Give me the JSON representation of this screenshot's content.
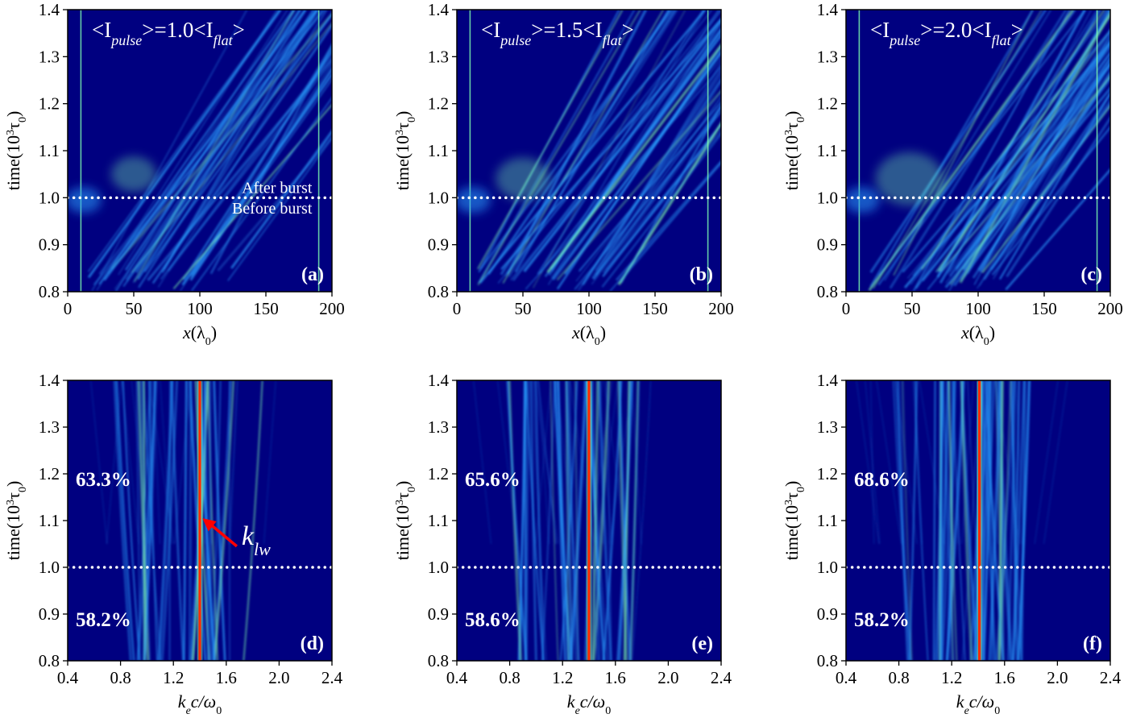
{
  "colors": {
    "background": "#000080",
    "streak": "#2aa0ff",
    "streak_bright": "#7fffb0",
    "hot_line": "#ff2a00",
    "text_on_plot": "#ffffff",
    "marker_line": "#ffffff",
    "arrow": "#ff0000"
  },
  "chart_data": [
    {
      "type": "heatmap",
      "panel": "(a)",
      "title": {
        "pre": "<I",
        "sub1": "pulse",
        "mid": ">=1.0<I",
        "sub2": "flat",
        "post": ">"
      },
      "xlabel": {
        "main": "x",
        "rest": "(λ",
        "sub": "0",
        "close": ")"
      },
      "ylabel": {
        "main": "time(10",
        "sup": "3",
        "tau": "τ",
        "sub": "0",
        "close": ")"
      },
      "xlim": [
        0,
        200
      ],
      "ylim": [
        0.8,
        1.4
      ],
      "xticks": [
        0,
        50,
        100,
        150,
        200
      ],
      "xtick_labels": [
        "0",
        "50",
        "100",
        "150",
        "200"
      ],
      "yticks": [
        0.8,
        0.9,
        1.0,
        1.1,
        1.2,
        1.3,
        1.4
      ],
      "ytick_labels": [
        "0.8",
        "0.9",
        "1.0",
        "1.1",
        "1.2",
        "1.3",
        "1.4"
      ],
      "hline": 1.0,
      "hline_style": "dotted",
      "annotations": [
        {
          "text": "After burst",
          "x": 185,
          "y": 1.022
        },
        {
          "text": "Before burst",
          "x": 185,
          "y": 0.978
        }
      ],
      "boundary_lines_x": [
        10,
        190
      ],
      "hotspot": {
        "x": 50,
        "y": 1.05,
        "strength": 1.0
      }
    },
    {
      "type": "heatmap",
      "panel": "(b)",
      "title": {
        "pre": "<I",
        "sub1": "pulse",
        "mid": ">=1.5<I",
        "sub2": "flat",
        "post": ">"
      },
      "xlabel": {
        "main": "x",
        "rest": "(λ",
        "sub": "0",
        "close": ")"
      },
      "ylabel": {
        "main": "time(10",
        "sup": "3",
        "tau": "τ",
        "sub": "0",
        "close": ")"
      },
      "xlim": [
        0,
        200
      ],
      "ylim": [
        0.8,
        1.4
      ],
      "xticks": [
        0,
        50,
        100,
        150,
        200
      ],
      "xtick_labels": [
        "0",
        "50",
        "100",
        "150",
        "200"
      ],
      "yticks": [
        0.8,
        0.9,
        1.0,
        1.1,
        1.2,
        1.3,
        1.4
      ],
      "ytick_labels": [
        "0.8",
        "0.9",
        "1.0",
        "1.1",
        "1.2",
        "1.3",
        "1.4"
      ],
      "hline": 1.0,
      "hline_style": "dotted",
      "annotations": [],
      "boundary_lines_x": [
        10,
        190
      ],
      "hotspot": {
        "x": 50,
        "y": 1.04,
        "strength": 1.2
      }
    },
    {
      "type": "heatmap",
      "panel": "(c)",
      "title": {
        "pre": "<I",
        "sub1": "pulse",
        "mid": ">=2.0<I",
        "sub2": "flat",
        "post": ">"
      },
      "xlabel": {
        "main": "x",
        "rest": "(λ",
        "sub": "0",
        "close": ")"
      },
      "ylabel": {
        "main": "time(10",
        "sup": "3",
        "tau": "τ",
        "sub": "0",
        "close": ")"
      },
      "xlim": [
        0,
        200
      ],
      "ylim": [
        0.8,
        1.4
      ],
      "xticks": [
        0,
        50,
        100,
        150,
        200
      ],
      "xtick_labels": [
        "0",
        "50",
        "100",
        "150",
        "200"
      ],
      "yticks": [
        0.8,
        0.9,
        1.0,
        1.1,
        1.2,
        1.3,
        1.4
      ],
      "ytick_labels": [
        "0.8",
        "0.9",
        "1.0",
        "1.1",
        "1.2",
        "1.3",
        "1.4"
      ],
      "hline": 1.0,
      "hline_style": "dotted",
      "annotations": [],
      "boundary_lines_x": [
        10,
        190
      ],
      "hotspot": {
        "x": 48,
        "y": 1.04,
        "strength": 1.5
      }
    },
    {
      "type": "heatmap",
      "panel": "(d)",
      "xlabel": {
        "k": "k",
        "ksub": "e",
        "rest": "c/ω",
        "sub": "0"
      },
      "ylabel": {
        "main": "time(10",
        "sup": "3",
        "tau": "τ",
        "sub": "0",
        "close": ")"
      },
      "xlim": [
        0.4,
        2.4
      ],
      "ylim": [
        0.8,
        1.4
      ],
      "xticks": [
        0.4,
        0.8,
        1.2,
        1.6,
        2.0,
        2.4
      ],
      "xtick_labels": [
        "0.4",
        "0.8",
        "1.2",
        "1.6",
        "2.0",
        "2.4"
      ],
      "yticks": [
        0.8,
        0.9,
        1.0,
        1.1,
        1.2,
        1.3,
        1.4
      ],
      "ytick_labels": [
        "0.8",
        "0.9",
        "1.0",
        "1.1",
        "1.2",
        "1.3",
        "1.4"
      ],
      "hline": 1.0,
      "hline_style": "dotted",
      "percent_after": "63.3%",
      "percent_before": "58.2%",
      "red_line_k": 1.4,
      "klw_label": {
        "main": "k",
        "sub": "lw",
        "arrow_tip": [
          1.42,
          1.105
        ],
        "arrow_tail": [
          1.68,
          1.045
        ]
      }
    },
    {
      "type": "heatmap",
      "panel": "(e)",
      "xlabel": {
        "k": "k",
        "ksub": "e",
        "rest": "c/ω",
        "sub": "0"
      },
      "ylabel": {
        "main": "time(10",
        "sup": "3",
        "tau": "τ",
        "sub": "0",
        "close": ")"
      },
      "xlim": [
        0.4,
        2.4
      ],
      "ylim": [
        0.8,
        1.4
      ],
      "xticks": [
        0.4,
        0.8,
        1.2,
        1.6,
        2.0,
        2.4
      ],
      "xtick_labels": [
        "0.4",
        "0.8",
        "1.2",
        "1.6",
        "2.0",
        "2.4"
      ],
      "yticks": [
        0.8,
        0.9,
        1.0,
        1.1,
        1.2,
        1.3,
        1.4
      ],
      "ytick_labels": [
        "0.8",
        "0.9",
        "1.0",
        "1.1",
        "1.2",
        "1.3",
        "1.4"
      ],
      "hline": 1.0,
      "hline_style": "dotted",
      "percent_after": "65.6%",
      "percent_before": "58.6%",
      "red_line_k": 1.4
    },
    {
      "type": "heatmap",
      "panel": "(f)",
      "xlabel": {
        "k": "k",
        "ksub": "e",
        "rest": "c/ω",
        "sub": "0"
      },
      "ylabel": {
        "main": "time(10",
        "sup": "3",
        "tau": "τ",
        "sub": "0",
        "close": ")"
      },
      "xlim": [
        0.4,
        2.4
      ],
      "ylim": [
        0.8,
        1.4
      ],
      "xticks": [
        0.4,
        0.8,
        1.2,
        1.6,
        2.0,
        2.4
      ],
      "xtick_labels": [
        "0.4",
        "0.8",
        "1.2",
        "1.6",
        "2.0",
        "2.4"
      ],
      "yticks": [
        0.8,
        0.9,
        1.0,
        1.1,
        1.2,
        1.3,
        1.4
      ],
      "ytick_labels": [
        "0.8",
        "0.9",
        "1.0",
        "1.1",
        "1.2",
        "1.3",
        "1.4"
      ],
      "hline": 1.0,
      "hline_style": "dotted",
      "percent_after": "68.6%",
      "percent_before": "58.2%",
      "red_line_k": 1.41
    }
  ]
}
